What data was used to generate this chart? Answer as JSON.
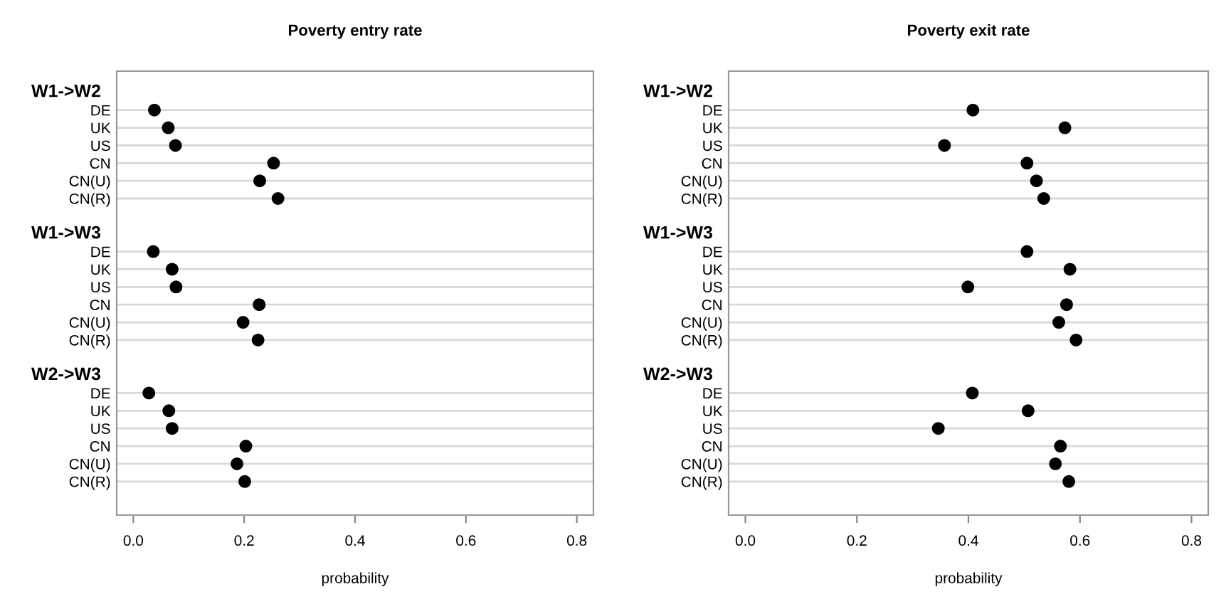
{
  "chart_data": [
    {
      "type": "scatter",
      "orientation": "horizontal",
      "title": "Poverty entry rate",
      "xlabel": "probability",
      "marker": "circle",
      "grid": "y",
      "legend": false,
      "categories": [
        "W1->W2",
        "DE",
        "UK",
        "US",
        "CN",
        "CN(U)",
        "CN(R)",
        null,
        "W1->W3",
        "DE",
        "UK",
        "US",
        "CN",
        "CN(U)",
        "CN(R)",
        null,
        "W2->W3",
        "DE",
        "UK",
        "US",
        "CN",
        "CN(U)",
        "CN(R)"
      ],
      "series": [
        {
          "color": "#000000",
          "values": [
            null,
            0.038,
            0.063,
            0.076,
            0.253,
            0.228,
            0.261,
            null,
            null,
            0.036,
            0.07,
            0.077,
            0.227,
            0.198,
            0.225,
            null,
            null,
            0.028,
            0.064,
            0.07,
            0.203,
            0.187,
            0.201
          ]
        }
      ],
      "xlim": [
        -0.03,
        0.83
      ],
      "xticks": [
        {
          "value": 0,
          "label": "0.0"
        },
        0.2,
        0.4,
        0.6,
        0.8
      ]
    },
    {
      "type": "scatter",
      "orientation": "horizontal",
      "title": "Poverty exit rate",
      "xlabel": "probability",
      "marker": "circle",
      "grid": "y",
      "legend": false,
      "categories": [
        "W1->W2",
        "DE",
        "UK",
        "US",
        "CN",
        "CN(U)",
        "CN(R)",
        null,
        "W1->W3",
        "DE",
        "UK",
        "US",
        "CN",
        "CN(U)",
        "CN(R)",
        null,
        "W2->W3",
        "DE",
        "UK",
        "US",
        "CN",
        "CN(U)",
        "CN(R)"
      ],
      "series": [
        {
          "color": "#000000",
          "values": [
            null,
            0.408,
            0.573,
            0.357,
            0.505,
            0.522,
            0.535,
            null,
            null,
            0.505,
            0.582,
            0.399,
            0.576,
            0.562,
            0.593,
            null,
            null,
            0.407,
            0.507,
            0.346,
            0.565,
            0.556,
            0.58
          ]
        }
      ],
      "xlim": [
        -0.03,
        0.83
      ],
      "xticks": [
        {
          "value": 0,
          "label": "0.0"
        },
        0.2,
        0.4,
        0.6,
        0.8
      ]
    }
  ]
}
